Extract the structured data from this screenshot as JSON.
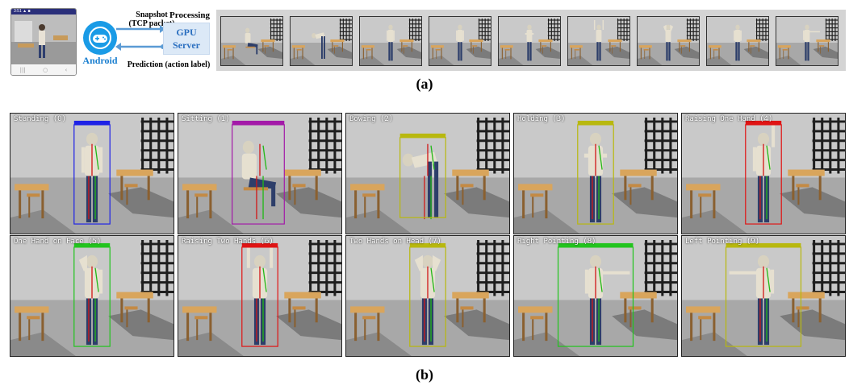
{
  "part_a": {
    "phone": {
      "status_text": "3:51 ▲ ■",
      "nav_icons": [
        "|||",
        "○",
        "‹"
      ]
    },
    "android_label": "Android",
    "snapshot_label_line1": "Snapshot",
    "snapshot_label_line2": "(TCP packet)",
    "prediction_label": "Prediction (action label)",
    "processing_label": "Processing",
    "gpu_line1": "GPU",
    "gpu_line2": "Server",
    "thumbnail_count": 9,
    "caption": "(a)"
  },
  "part_b": {
    "panels": [
      {
        "label": "Standing (0)",
        "box_color": "#1e22e6"
      },
      {
        "label": "Sitting (1)",
        "box_color": "#a31aa8"
      },
      {
        "label": "Bowing (2)",
        "box_color": "#b8b80f"
      },
      {
        "label": "Holding (3)",
        "box_color": "#b8b80f"
      },
      {
        "label": "Raising One Hand (4)",
        "box_color": "#e01414"
      },
      {
        "label": "One Hand on Face (5)",
        "box_color": "#22c41e"
      },
      {
        "label": "Raising Two Hands (6)",
        "box_color": "#e01414"
      },
      {
        "label": "Two Hands on Head (7)",
        "box_color": "#b8b80f"
      },
      {
        "label": "Right Pointing (8)",
        "box_color": "#22c41e"
      },
      {
        "label": "Left Pointing (9)",
        "box_color": "#b8b80f"
      }
    ],
    "caption": "(b)"
  },
  "colors": {
    "android_blue": "#1a9be6",
    "gpu_text": "#2b6fc0",
    "gpu_box": "#dce9f7",
    "strip_bg": "#d4d4d4"
  }
}
